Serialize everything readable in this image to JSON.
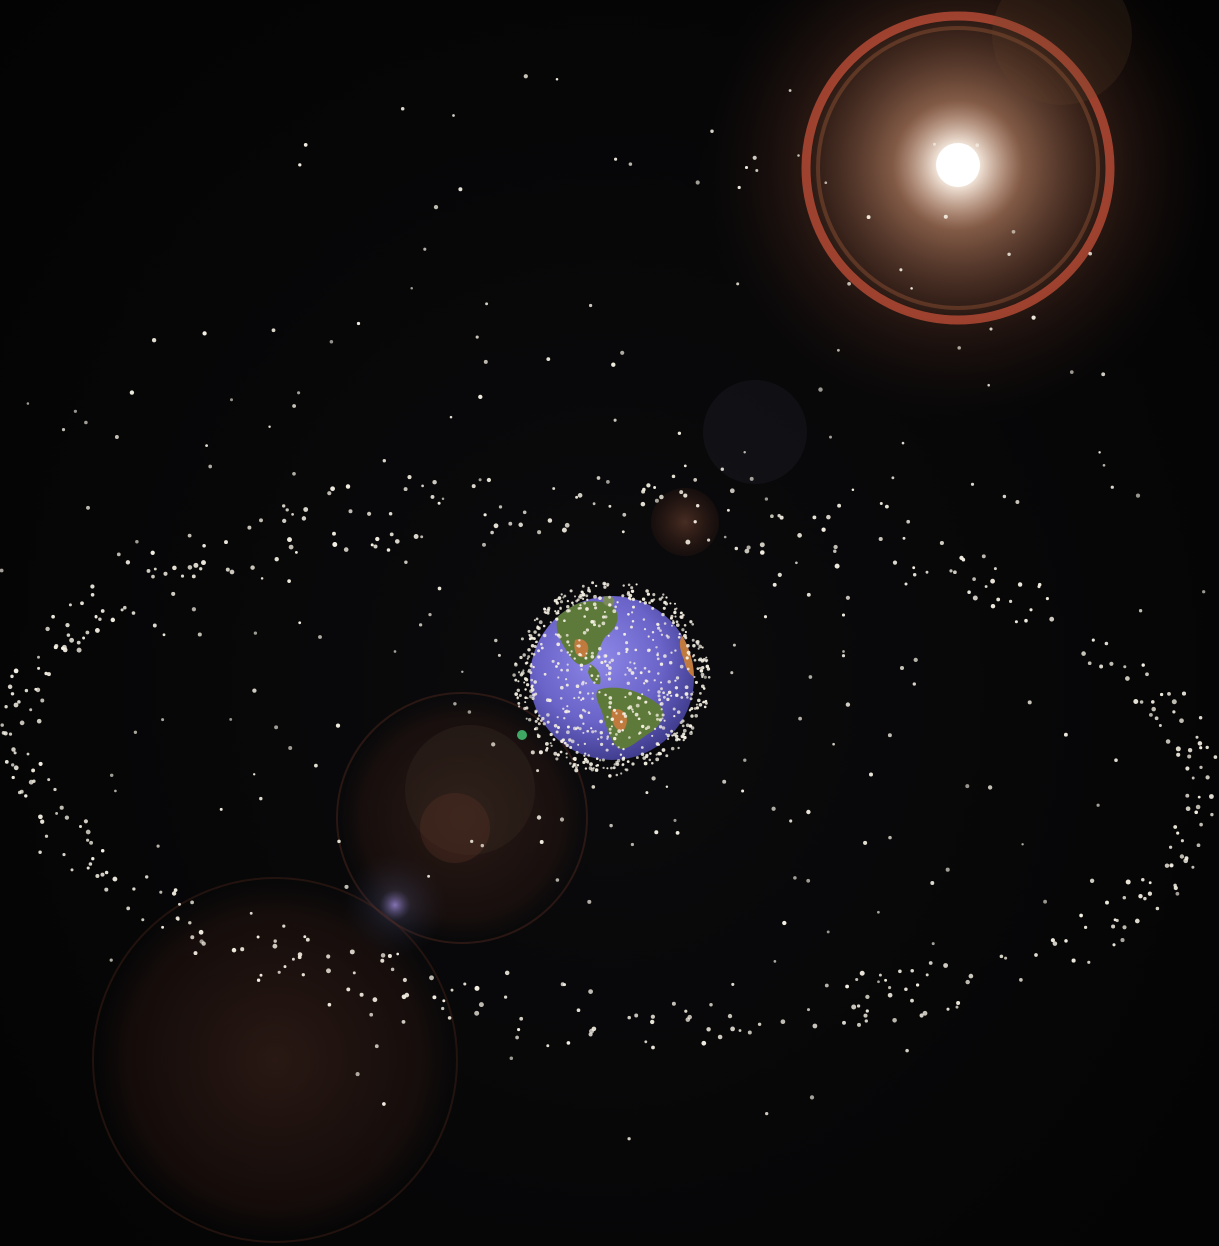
{
  "scene": {
    "kind": "space-debris-visualization",
    "icons": {
      "earth": "earth-globe-icon",
      "sun": "sun-glare-icon"
    },
    "colors": {
      "space": "#050505",
      "ocean": "#6a63c8",
      "land": "#5e7a3a",
      "desert": "#c07a3e",
      "debris": "#f4efe2",
      "sun_core": "#ffffff",
      "sun_halo": "#d6804f",
      "sun_ring": "#c6503a",
      "flare": "#8a4a32"
    },
    "debris_objects": {
      "low_earth_orbit_count": 650,
      "geostationary_ring_count": 420,
      "scattered_count": 260
    }
  }
}
